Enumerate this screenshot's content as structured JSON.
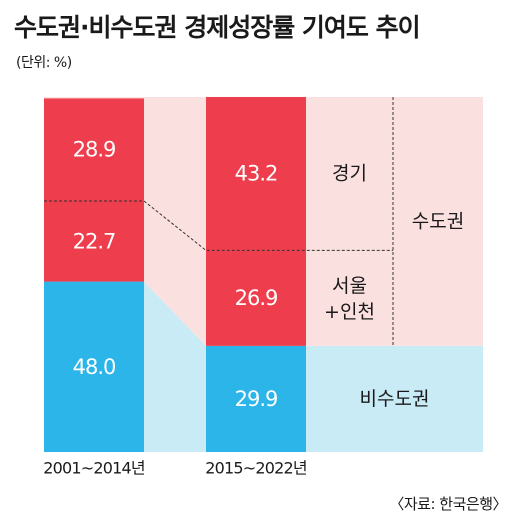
{
  "header": {
    "title": "수도권·비수도권 경제성장률 기여도 추이",
    "unit": "(단위: %)"
  },
  "footer": {
    "source": "〈자료: 한국은행〉"
  },
  "colors": {
    "red": "#ee3d4c",
    "blue": "#2bb5e8",
    "pink_bg": "#fbe0e0",
    "lightblue_bg": "#c9ebf6",
    "line": "#333333"
  },
  "chart_data": {
    "type": "bar",
    "stacked": true,
    "categories": [
      "2001~2014년",
      "2015~2022년"
    ],
    "series": [
      {
        "name": "비수도권",
        "values": [
          48.0,
          29.9
        ],
        "labels": [
          "48.0",
          "29.9"
        ]
      },
      {
        "name": "서울+인천",
        "values": [
          22.7,
          26.9
        ],
        "labels": [
          "22.7",
          "26.9"
        ]
      },
      {
        "name": "경기",
        "values": [
          28.9,
          43.2
        ],
        "labels": [
          "28.9",
          "43.2"
        ]
      }
    ],
    "region_labels": {
      "gyeonggi": "경기",
      "seoul_line1": "서울",
      "seoul_line2": "+인천",
      "capital": "수도권",
      "noncapital": "비수도권"
    },
    "ylim": [
      0,
      100
    ]
  }
}
